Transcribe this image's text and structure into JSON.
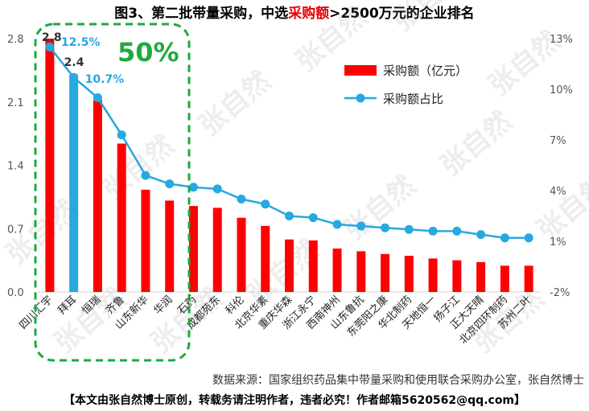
{
  "title": {
    "prefix": "图3、第二批带量采购，中选",
    "highlight": "采购额",
    "suffix": ">2500万元的企业排名"
  },
  "annotation": "50%",
  "source": "数据来源：国家组织药品集中带量采购和使用联合采购办公室，张自然博士",
  "footer": "【本文由张自然博士原创，转载务请注明作者，违者必究！作者邮箱5620562@qq.com】",
  "watermark": "张自然",
  "colors": {
    "bar": "#ff0000",
    "bar_highlight": "#27a8e0",
    "line": "#27a8e0",
    "annotation_box": "#1eaa3c"
  },
  "chart_data": {
    "type": "bar",
    "categories": [
      "四川汇宇",
      "拜耳",
      "恒瑞",
      "齐鲁",
      "山东新华",
      "华润",
      "石药",
      "成都苑东",
      "科伦",
      "北京华素",
      "重庆华森",
      "浙江永宁",
      "西南神州",
      "山东鲁抗",
      "东莞阳之康",
      "华北制药",
      "天地恒一",
      "扬子江",
      "正大天晴",
      "北京四环制药",
      "苏州二叶"
    ],
    "series": [
      {
        "name": "采购额（亿元）",
        "type": "bar",
        "axis": "left",
        "values": [
          2.8,
          2.4,
          2.12,
          1.64,
          1.13,
          1.01,
          0.95,
          0.93,
          0.82,
          0.73,
          0.58,
          0.57,
          0.48,
          0.45,
          0.42,
          0.4,
          0.37,
          0.35,
          0.33,
          0.29,
          0.29
        ]
      },
      {
        "name": "采购额占比",
        "type": "line",
        "axis": "right",
        "values": [
          12.5,
          10.7,
          9.5,
          7.3,
          4.9,
          4.4,
          4.2,
          4.1,
          3.5,
          3.2,
          2.5,
          2.4,
          2.0,
          1.9,
          1.8,
          1.7,
          1.6,
          1.6,
          1.4,
          1.2,
          1.2
        ]
      }
    ],
    "data_labels": [
      {
        "index": 0,
        "series": 0,
        "text": "2.8"
      },
      {
        "index": 0,
        "series": 1,
        "text": "12.5%"
      },
      {
        "index": 1,
        "series": 0,
        "text": "2.4"
      },
      {
        "index": 1,
        "series": 1,
        "text": "10.7%"
      }
    ],
    "highlight_index": 1,
    "ylim_left": [
      0,
      2.8
    ],
    "yticks_left": [
      "0.0",
      "0.7",
      "1.4",
      "2.1",
      "2.8"
    ],
    "ylim_right": [
      -2,
      13
    ],
    "yticks_right": [
      "-2%",
      "1%",
      "4%",
      "7%",
      "10%",
      "13%"
    ],
    "legend_position": "top-right",
    "grid": false
  }
}
